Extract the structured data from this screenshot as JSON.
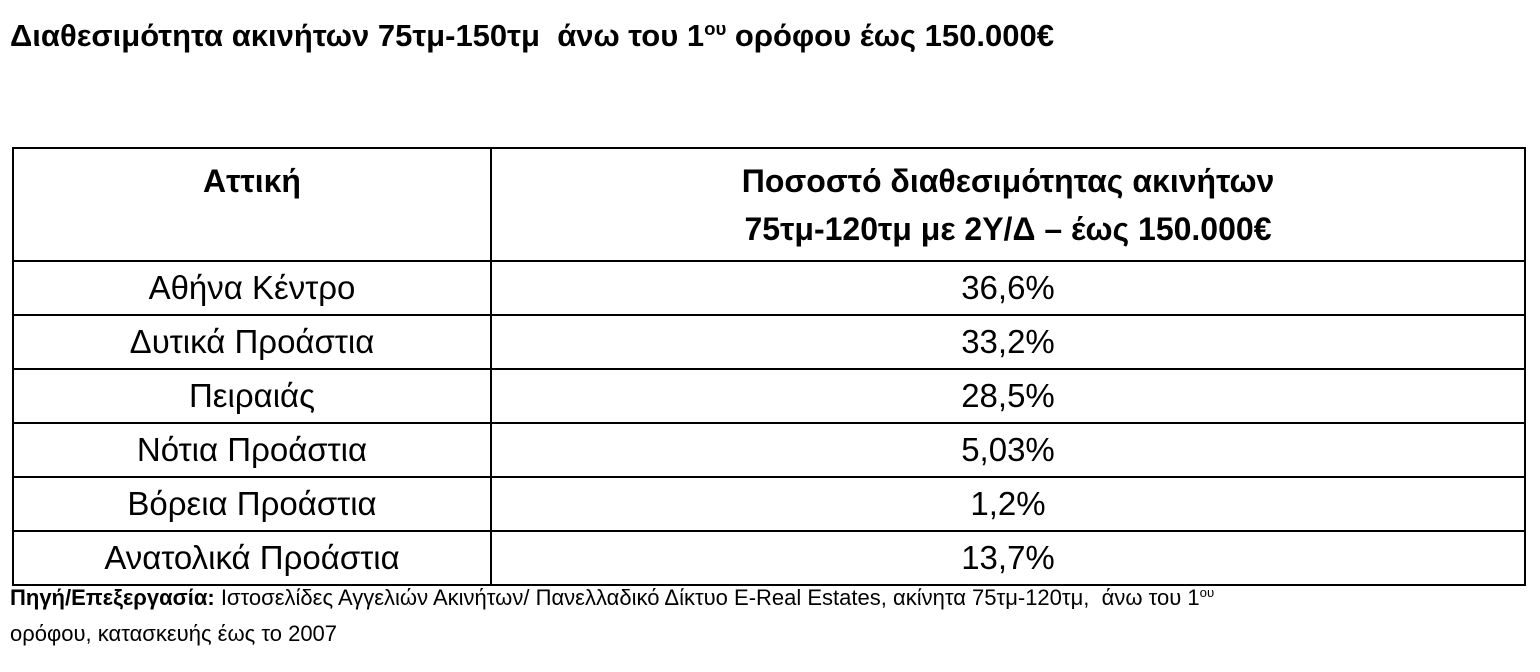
{
  "header": {
    "title": {
      "before": "Διαθεσιμότητα ακινήτων 75τμ-150τμ  άνω του 1",
      "sup": "ου",
      "after": " ορόφου έως 150.000€"
    }
  },
  "table": {
    "columns": [
      "Αττική",
      [
        "Ποσοστό διαθεσιμότητας ακινήτων",
        "75τμ-120τμ με 2Υ/Δ – έως 150.000€"
      ]
    ],
    "rows": [
      [
        "Αθήνα Κέντρο",
        "36,6%"
      ],
      [
        "Δυτικά Προάστια",
        "33,2%"
      ],
      [
        "Πειραιάς",
        "28,5%"
      ],
      [
        "Νότια Προάστια",
        "5,03%"
      ],
      [
        "Βόρεια Προάστια",
        "1,2%"
      ],
      [
        "Ανατολικά Προάστια",
        "13,7%"
      ]
    ]
  },
  "footnote": {
    "label": "Πηγή/Επεξεργασία:",
    "before": " Ιστοσελίδες Αγγελιών Ακινήτων/ Πανελλαδικό Δίκτυο E-Real Estates, ακίνητα 75τμ-120τμ,  άνω του 1",
    "sup": "ου",
    "after": "ορόφου, κατασκευής έως το 2007"
  }
}
